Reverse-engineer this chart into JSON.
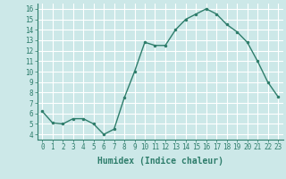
{
  "x": [
    0,
    1,
    2,
    3,
    4,
    5,
    6,
    7,
    8,
    9,
    10,
    11,
    12,
    13,
    14,
    15,
    16,
    17,
    18,
    19,
    20,
    21,
    22,
    23
  ],
  "y": [
    6.2,
    5.1,
    5.0,
    5.5,
    5.5,
    5.0,
    4.0,
    4.5,
    7.5,
    10.0,
    12.8,
    12.5,
    12.5,
    14.0,
    15.0,
    15.5,
    16.0,
    15.5,
    14.5,
    13.8,
    12.8,
    11.0,
    9.0,
    7.6
  ],
  "line_color": "#2e7d6b",
  "marker": ".",
  "marker_size": 3,
  "bg_color": "#cce8e8",
  "grid_color": "#ffffff",
  "xlabel": "Humidex (Indice chaleur)",
  "xlim": [
    -0.5,
    23.5
  ],
  "ylim": [
    3.5,
    16.5
  ],
  "yticks": [
    4,
    5,
    6,
    7,
    8,
    9,
    10,
    11,
    12,
    13,
    14,
    15,
    16
  ],
  "xticks": [
    0,
    1,
    2,
    3,
    4,
    5,
    6,
    7,
    8,
    9,
    10,
    11,
    12,
    13,
    14,
    15,
    16,
    17,
    18,
    19,
    20,
    21,
    22,
    23
  ],
  "tick_fontsize": 5.5,
  "xlabel_fontsize": 7,
  "xlabel_fontweight": "bold",
  "line_width": 1.0,
  "spine_color": "#2e7d6b"
}
